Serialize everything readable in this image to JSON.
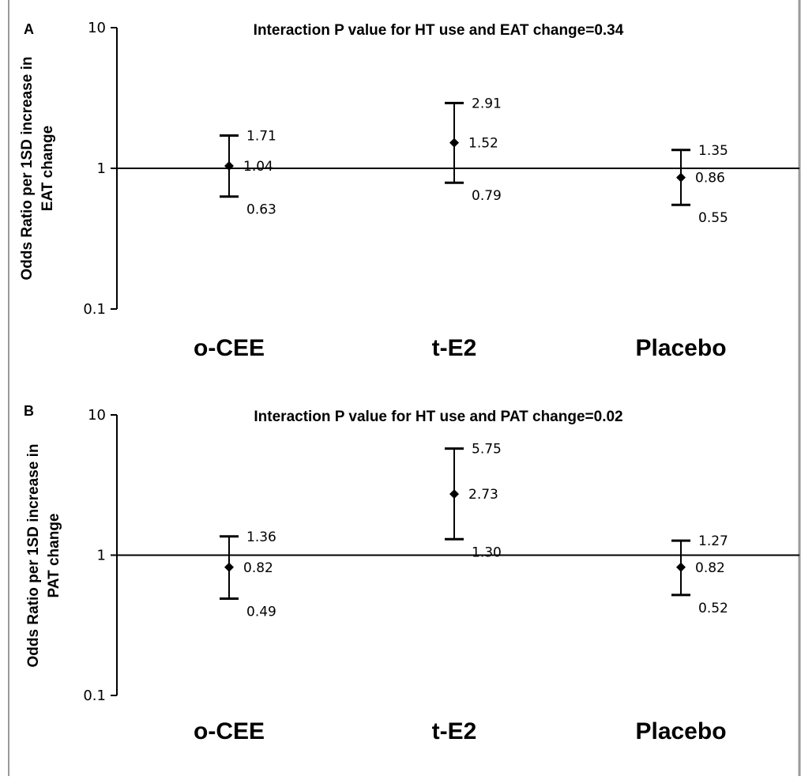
{
  "chart_data": [
    {
      "type": "scatter",
      "panel_label": "A",
      "title": "Interaction P value for HT use and EAT change=0.34",
      "ylabel_lines": [
        "Odds Ratio per 1SD increase in",
        "EAT change"
      ],
      "yscale": "log",
      "ylim": [
        0.1,
        10
      ],
      "yticks": [
        "10",
        "1",
        "0.1"
      ],
      "reference_line": 1,
      "categories": [
        "o-CEE",
        "t-E2",
        "Placebo"
      ],
      "points": [
        {
          "category": "o-CEE",
          "or": 1.04,
          "lower": 0.63,
          "upper": 1.71,
          "or_label": "1.04",
          "lower_label": "0.63",
          "upper_label": "1.71"
        },
        {
          "category": "t-E2",
          "or": 1.52,
          "lower": 0.79,
          "upper": 2.91,
          "or_label": "1.52",
          "lower_label": "0.79",
          "upper_label": "2.91"
        },
        {
          "category": "Placebo",
          "or": 0.86,
          "lower": 0.55,
          "upper": 1.35,
          "or_label": "0.86",
          "lower_label": "0.55",
          "upper_label": "1.35"
        }
      ]
    },
    {
      "type": "scatter",
      "panel_label": "B",
      "title": "Interaction P value for HT use and PAT change=0.02",
      "ylabel_lines": [
        "Odds Ratio per 1SD increase in",
        "PAT change"
      ],
      "yscale": "log",
      "ylim": [
        0.1,
        10
      ],
      "yticks": [
        "10",
        "1",
        "0.1"
      ],
      "reference_line": 1,
      "categories": [
        "o-CEE",
        "t-E2",
        "Placebo"
      ],
      "points": [
        {
          "category": "o-CEE",
          "or": 0.82,
          "lower": 0.49,
          "upper": 1.36,
          "or_label": "0.82",
          "lower_label": "0.49",
          "upper_label": "1.36"
        },
        {
          "category": "t-E2",
          "or": 2.73,
          "lower": 1.3,
          "upper": 5.75,
          "or_label": "2.73",
          "lower_label": "1.30",
          "upper_label": "5.75"
        },
        {
          "category": "Placebo",
          "or": 0.82,
          "lower": 0.52,
          "upper": 1.27,
          "or_label": "0.82",
          "lower_label": "0.52",
          "upper_label": "1.27"
        }
      ]
    }
  ]
}
